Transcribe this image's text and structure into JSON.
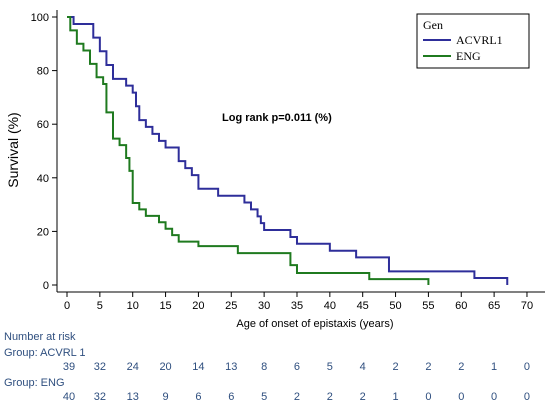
{
  "chart_data": {
    "type": "line",
    "xlabel": "Age of onset of epistaxis (years)",
    "ylabel": "Survival (%)",
    "xlim": [
      0,
      70
    ],
    "ylim": [
      0,
      100
    ],
    "xticks": [
      0,
      5,
      10,
      15,
      20,
      25,
      30,
      35,
      40,
      45,
      50,
      55,
      60,
      65,
      70
    ],
    "yticks": [
      0,
      20,
      40,
      60,
      80,
      100
    ],
    "grid": false,
    "step": true,
    "legend": {
      "title": "Gen",
      "position": "top-right"
    },
    "annotation": "Log rank p=0.011 (%)",
    "series": [
      {
        "name": "ACVRL1",
        "color": "#2e2e9a",
        "x": [
          0,
          1,
          4,
          5,
          6,
          7,
          9,
          10,
          10.5,
          11,
          12,
          13,
          14,
          15,
          17,
          18,
          19,
          20,
          23,
          27,
          28,
          29,
          29.5,
          30,
          34,
          35,
          37,
          40,
          44,
          49,
          62,
          67
        ],
        "y": [
          100,
          97.4,
          92.3,
          87.2,
          82.1,
          76.9,
          74.4,
          71.8,
          66.7,
          61.5,
          59,
          56.4,
          53.8,
          51.3,
          46.2,
          43.6,
          41,
          35.9,
          33.3,
          30.8,
          28.2,
          25.6,
          23.1,
          20.5,
          17.9,
          15.4,
          15.4,
          12.8,
          10.3,
          5.1,
          2.6,
          0
        ]
      },
      {
        "name": "ENG",
        "color": "#1f7a1f",
        "x": [
          0,
          0.5,
          1.5,
          2.5,
          3.5,
          4.5,
          5.5,
          6,
          7,
          8,
          9,
          9.5,
          10,
          11,
          12,
          14,
          15,
          16,
          17,
          20,
          26,
          34,
          35,
          46,
          55
        ],
        "y": [
          100,
          95,
          90,
          87.5,
          82.5,
          77.5,
          75,
          64.4,
          54.6,
          52.2,
          47.4,
          42.6,
          30.6,
          28.2,
          25.8,
          23.4,
          21,
          18.6,
          16.2,
          14.5,
          11.9,
          7.4,
          4.5,
          2.2,
          0
        ]
      }
    ],
    "risk_table": {
      "title": "Number at risk",
      "groups": [
        {
          "label": "Group: ACVRL 1",
          "counts": [
            "39",
            "32",
            "24",
            "20",
            "14",
            "13",
            "8",
            "6",
            "5",
            "4",
            "2",
            "2",
            "2",
            "1",
            "0"
          ]
        },
        {
          "label": "Group: ENG",
          "counts": [
            "40",
            "32",
            "13",
            "9",
            "6",
            "6",
            "5",
            "2",
            "2",
            "2",
            "1",
            "0",
            "0",
            "0",
            "0"
          ]
        }
      ]
    }
  }
}
